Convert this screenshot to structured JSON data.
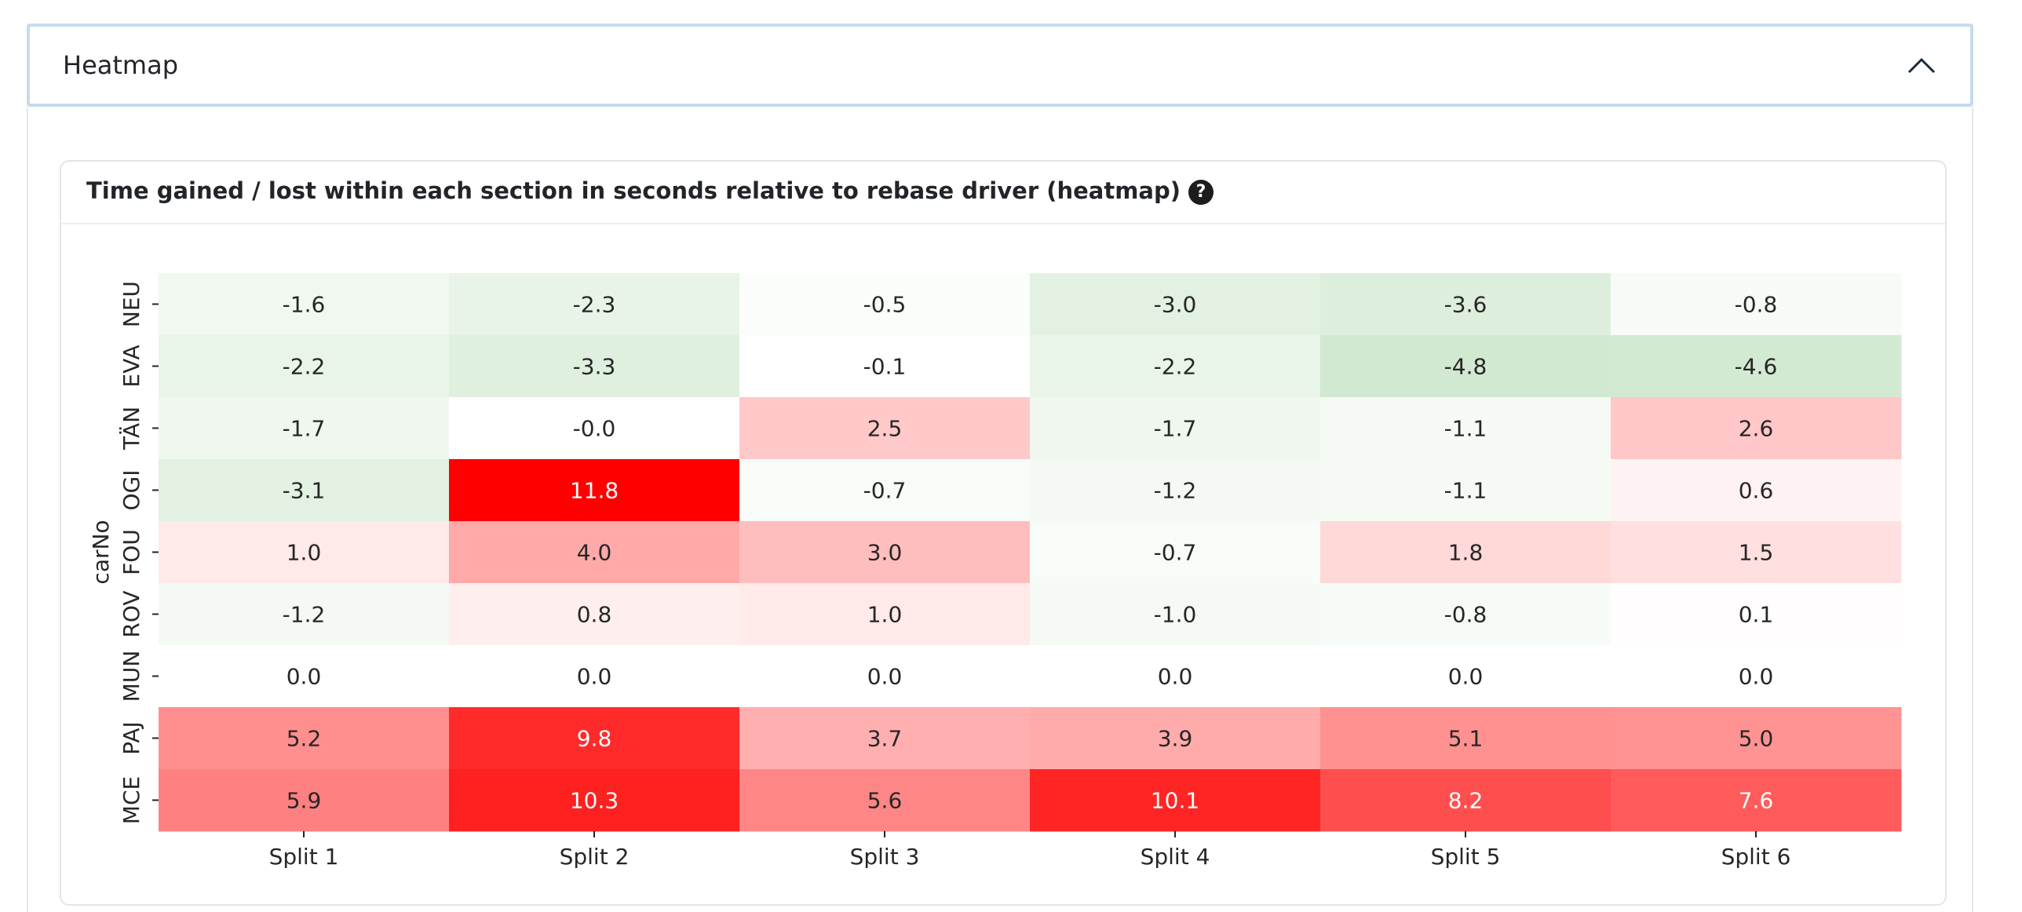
{
  "accordion": {
    "title": "Heatmap"
  },
  "card": {
    "title": "Time gained / lost within each section in seconds relative to rebase driver (heatmap)",
    "help_icon": "?"
  },
  "chart_data": {
    "type": "heatmap",
    "ylabel": "carNo",
    "xlabel": "",
    "x_categories": [
      "Split 1",
      "Split 2",
      "Split 3",
      "Split 4",
      "Split 5",
      "Split 6"
    ],
    "y_categories": [
      "NEU",
      "EVA",
      "TÄN",
      "OGI",
      "FOU",
      "ROV",
      "MUN",
      "PAJ",
      "MCE"
    ],
    "values": [
      [
        -1.6,
        -2.3,
        -0.5,
        -3.0,
        -3.6,
        -0.8
      ],
      [
        -2.2,
        -3.3,
        -0.1,
        -2.2,
        -4.8,
        -4.6
      ],
      [
        -1.7,
        -0.0,
        2.5,
        -1.7,
        -1.1,
        2.6
      ],
      [
        -3.1,
        11.8,
        -0.7,
        -1.2,
        -1.1,
        0.6
      ],
      [
        1.0,
        4.0,
        3.0,
        -0.7,
        1.8,
        1.5
      ],
      [
        -1.2,
        0.8,
        1.0,
        -1.0,
        -0.8,
        0.1
      ],
      [
        0.0,
        0.0,
        0.0,
        0.0,
        0.0,
        0.0
      ],
      [
        5.2,
        9.8,
        3.7,
        3.9,
        5.1,
        5.0
      ],
      [
        5.9,
        10.3,
        5.6,
        10.1,
        8.2,
        7.6
      ]
    ],
    "labels": [
      [
        "-1.6",
        "-2.3",
        "-0.5",
        "-3.0",
        "-3.6",
        "-0.8"
      ],
      [
        "-2.2",
        "-3.3",
        "-0.1",
        "-2.2",
        "-4.8",
        "-4.6"
      ],
      [
        "-1.7",
        "-0.0",
        "2.5",
        "-1.7",
        "-1.1",
        "2.6"
      ],
      [
        "-3.1",
        "11.8",
        "-0.7",
        "-1.2",
        "-1.1",
        "0.6"
      ],
      [
        "1.0",
        "4.0",
        "3.0",
        "-0.7",
        "1.8",
        "1.5"
      ],
      [
        "-1.2",
        "0.8",
        "1.0",
        "-1.0",
        "-0.8",
        "0.1"
      ],
      [
        "0.0",
        "0.0",
        "0.0",
        "0.0",
        "0.0",
        "0.0"
      ],
      [
        "5.2",
        "9.8",
        "3.7",
        "3.9",
        "5.1",
        "5.0"
      ],
      [
        "5.9",
        "10.3",
        "5.6",
        "10.1",
        "8.2",
        "7.6"
      ]
    ],
    "colors": {
      "negative": "#8fc98b",
      "neutral": "#ffffff",
      "positive": "#ff0000"
    },
    "color_range": [
      -11.8,
      11.8
    ]
  }
}
